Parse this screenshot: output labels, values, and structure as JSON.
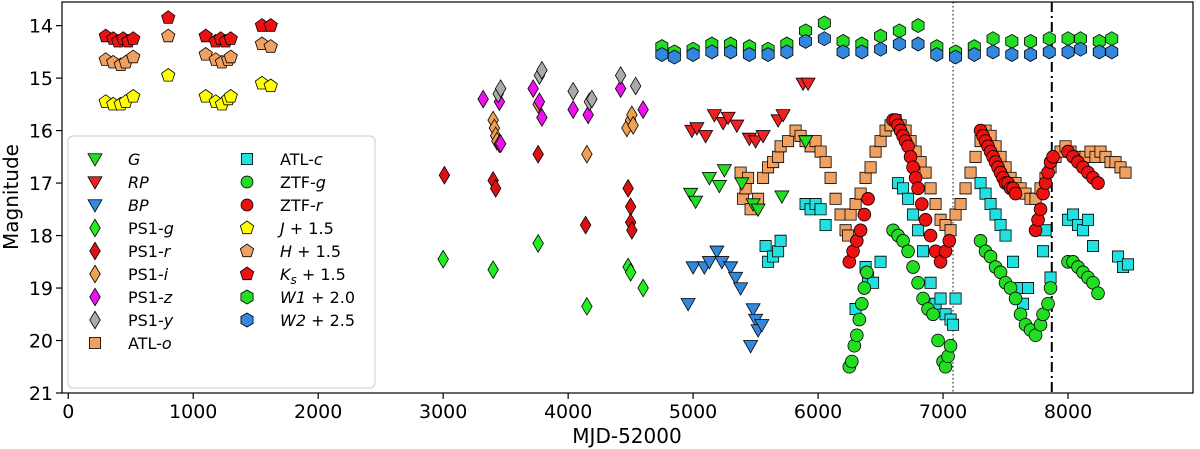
{
  "chart_data": {
    "type": "scatter",
    "title": "",
    "xlabel": "MJD-52000",
    "ylabel": "Magnitude",
    "xlim": [
      -50,
      9000
    ],
    "ylim": [
      21,
      13.55
    ],
    "y_inverted": true,
    "xticks": [
      0,
      1000,
      2000,
      3000,
      4000,
      5000,
      6000,
      7000,
      8000
    ],
    "yticks": [
      14,
      15,
      16,
      17,
      18,
      19,
      20,
      21
    ],
    "vlines": [
      {
        "x": 7080,
        "style": "dotted"
      },
      {
        "x": 7870,
        "style": "dashdot"
      }
    ],
    "legend_position": "left",
    "legend": [
      {
        "label": "G",
        "italic": true,
        "sub": "",
        "suffix": "",
        "series": "G"
      },
      {
        "label": "RP",
        "italic": true,
        "sub": "",
        "suffix": "",
        "series": "RP"
      },
      {
        "label": "BP",
        "italic": true,
        "sub": "",
        "suffix": "",
        "series": "BP"
      },
      {
        "label": "PS1-",
        "italic": false,
        "band": "g",
        "suffix": "",
        "series": "PS1-g"
      },
      {
        "label": "PS1-",
        "italic": false,
        "band": "r",
        "suffix": "",
        "series": "PS1-r"
      },
      {
        "label": "PS1-",
        "italic": false,
        "band": "i",
        "suffix": "",
        "series": "PS1-i"
      },
      {
        "label": "PS1-",
        "italic": false,
        "band": "z",
        "suffix": "",
        "series": "PS1-z"
      },
      {
        "label": "PS1-",
        "italic": false,
        "band": "y",
        "suffix": "",
        "series": "PS1-y"
      },
      {
        "label": "ATL-",
        "italic": false,
        "band": "o",
        "suffix": "",
        "series": "ATL-o"
      },
      {
        "label": "ATL-",
        "italic": false,
        "band": "c",
        "suffix": "",
        "series": "ATL-c"
      },
      {
        "label": "ZTF-",
        "italic": false,
        "band": "g",
        "suffix": "",
        "series": "ZTF-g"
      },
      {
        "label": "ZTF-",
        "italic": false,
        "band": "r",
        "suffix": "",
        "series": "ZTF-r"
      },
      {
        "label": "J",
        "italic": true,
        "sub": "",
        "suffix": " + 1.5",
        "series": "J + 1.5"
      },
      {
        "label": "H",
        "italic": true,
        "sub": "",
        "suffix": " + 1.5",
        "series": "H + 1.5"
      },
      {
        "label": "K",
        "italic": true,
        "sub": "s",
        "suffix": " + 1.5",
        "series": "Ks + 1.5"
      },
      {
        "label": "W1",
        "italic": true,
        "sub": "",
        "suffix": " + 2.0",
        "series": "W1 + 2.0"
      },
      {
        "label": "W2",
        "italic": true,
        "sub": "",
        "suffix": " + 2.5",
        "series": "W2 + 2.5"
      }
    ],
    "series": [
      {
        "name": "G",
        "marker": "triangle-down",
        "color": "#22dd22",
        "x": [
          4980,
          5020,
          5130,
          5210,
          5250,
          5390,
          5480,
          5520,
          5710,
          5900
        ],
        "y": [
          17.2,
          17.35,
          16.9,
          17.05,
          16.75,
          17.0,
          17.4,
          17.5,
          17.25,
          16.2
        ]
      },
      {
        "name": "RP",
        "marker": "triangle-down",
        "color": "#ee2222",
        "x": [
          4990,
          5030,
          5100,
          5170,
          5240,
          5280,
          5350,
          5450,
          5500,
          5560,
          5680,
          5720,
          5880,
          5920
        ],
        "y": [
          16.0,
          15.95,
          16.1,
          15.7,
          15.85,
          15.75,
          15.9,
          16.15,
          16.2,
          16.1,
          15.8,
          15.7,
          15.1,
          15.1
        ]
      },
      {
        "name": "BP",
        "marker": "triangle-down",
        "color": "#3388dd",
        "x": [
          4960,
          5000,
          5090,
          5130,
          5190,
          5230,
          5300,
          5340,
          5380,
          5480,
          5500,
          5520,
          5550,
          5460
        ],
        "y": [
          19.3,
          18.6,
          18.6,
          18.5,
          18.3,
          18.5,
          18.6,
          18.8,
          19.0,
          19.4,
          19.6,
          19.8,
          19.7,
          20.1
        ]
      },
      {
        "name": "PS1-g",
        "marker": "diamond",
        "color": "#22ee22",
        "x": [
          3000,
          3400,
          3760,
          4150,
          4480,
          4500,
          4600
        ],
        "y": [
          18.45,
          18.65,
          18.15,
          19.35,
          18.6,
          18.7,
          19.0
        ]
      },
      {
        "name": "PS1-r",
        "marker": "diamond",
        "color": "#dd1111",
        "x": [
          3010,
          3400,
          3420,
          3760,
          4140,
          4480,
          4500,
          4500,
          4510
        ],
        "y": [
          16.85,
          16.95,
          17.1,
          16.45,
          17.8,
          17.1,
          17.45,
          17.75,
          17.9
        ]
      },
      {
        "name": "PS1-i",
        "marker": "diamond",
        "color": "#f0a050",
        "x": [
          3400,
          3410,
          3420,
          3430,
          3450,
          3760,
          4150,
          4470,
          4500,
          4510,
          4520
        ],
        "y": [
          15.8,
          15.95,
          16.1,
          16.2,
          16.25,
          15.5,
          16.45,
          15.95,
          15.8,
          15.7,
          15.9
        ]
      },
      {
        "name": "PS1-z",
        "marker": "diamond",
        "color": "#ee11ee",
        "x": [
          3320,
          3450,
          3460,
          3720,
          3770,
          4040,
          4160,
          4420,
          4600,
          3790
        ],
        "y": [
          15.4,
          15.45,
          16.25,
          15.2,
          15.45,
          15.6,
          15.7,
          15.2,
          15.6,
          15.75
        ]
      },
      {
        "name": "PS1-y",
        "marker": "diamond",
        "color": "#aaaaaa",
        "x": [
          3440,
          3460,
          3770,
          3790,
          4040,
          4170,
          4190,
          4420,
          4540
        ],
        "y": [
          15.3,
          15.2,
          14.95,
          14.85,
          15.25,
          15.45,
          15.4,
          14.95,
          15.15
        ]
      },
      {
        "name": "ATL-o",
        "marker": "square",
        "color": "#f0a060",
        "x": [
          5380,
          5400,
          5420,
          5440,
          5460,
          5520,
          5560,
          5600,
          5640,
          5680,
          5700,
          5760,
          5820,
          5860,
          5900,
          5940,
          5980,
          6020,
          6060,
          6100,
          6140,
          6180,
          6220,
          6240,
          6260,
          6300,
          6340,
          6380,
          6420,
          6460,
          6500,
          6540,
          6580,
          6620,
          6660,
          6700,
          6740,
          6780,
          6820,
          6860,
          6900,
          6940,
          6980,
          7020,
          7060,
          7100,
          7140,
          7180,
          7220,
          7260,
          7300,
          7340,
          7380,
          7420,
          7460,
          7500,
          7540,
          7580,
          7620,
          7660,
          7700,
          7740,
          7780,
          7820,
          7860,
          7900,
          7940,
          7980,
          8020,
          8060,
          8100,
          8140,
          8180,
          8220,
          8260,
          8300,
          8340,
          8380,
          8420,
          8460
        ],
        "y": [
          16.8,
          17.3,
          17.1,
          16.9,
          17.5,
          17.3,
          16.9,
          16.7,
          16.6,
          16.5,
          16.3,
          16.2,
          16.0,
          16.1,
          16.2,
          16.3,
          16.2,
          16.4,
          16.6,
          16.9,
          17.3,
          17.6,
          17.9,
          18.0,
          17.6,
          17.4,
          17.2,
          16.9,
          16.7,
          16.4,
          16.2,
          16.0,
          15.9,
          15.8,
          15.9,
          16.0,
          16.2,
          16.4,
          16.6,
          16.8,
          17.1,
          17.4,
          17.7,
          17.8,
          17.9,
          17.6,
          17.4,
          17.1,
          16.8,
          16.5,
          16.2,
          16.0,
          16.1,
          16.3,
          16.5,
          16.7,
          16.9,
          17.0,
          17.1,
          17.2,
          17.3,
          17.3,
          17.1,
          16.9,
          16.7,
          16.5,
          16.4,
          16.3,
          16.4,
          16.5,
          16.5,
          16.5,
          16.4,
          16.5,
          16.4,
          16.5,
          16.6,
          16.6,
          16.7,
          16.8
        ]
      },
      {
        "name": "ATL-c",
        "marker": "square",
        "color": "#22e0e0",
        "x": [
          5580,
          5600,
          5640,
          5680,
          5700,
          5900,
          5940,
          5980,
          6020,
          6060,
          6300,
          6380,
          6400,
          6440,
          6500,
          6640,
          6680,
          6720,
          6760,
          6800,
          6840,
          6900,
          6940,
          6980,
          7020,
          7060,
          7080,
          7100,
          7300,
          7340,
          7380,
          7420,
          7460,
          7500,
          7560,
          7620,
          7640,
          7680,
          7800,
          7820,
          7860,
          8000,
          8040,
          8080,
          8120,
          8160,
          8200,
          8400,
          8440,
          8480
        ],
        "y": [
          18.2,
          18.5,
          18.4,
          18.3,
          18.1,
          17.4,
          17.5,
          17.4,
          17.5,
          17.8,
          19.4,
          18.6,
          18.8,
          18.9,
          18.5,
          17.0,
          17.1,
          17.3,
          17.6,
          17.9,
          18.3,
          18.9,
          19.3,
          19.2,
          19.5,
          19.6,
          19.7,
          19.2,
          17.0,
          17.2,
          17.4,
          17.6,
          17.8,
          18.0,
          18.5,
          19.0,
          19.3,
          19.0,
          18.3,
          17.9,
          18.8,
          17.7,
          17.6,
          17.8,
          17.9,
          17.7,
          18.2,
          18.4,
          18.6,
          18.55
        ]
      },
      {
        "name": "ZTF-g",
        "marker": "circle",
        "color": "#22dd22",
        "x": [
          6250,
          6270,
          6290,
          6310,
          6330,
          6350,
          6370,
          6390,
          6600,
          6640,
          6680,
          6720,
          6760,
          6800,
          6840,
          6880,
          6920,
          6960,
          7000,
          7020,
          7040,
          7060,
          7300,
          7340,
          7380,
          7420,
          7460,
          7500,
          7540,
          7580,
          7620,
          7660,
          7700,
          7740,
          7780,
          7800,
          7840,
          7860,
          8000,
          8040,
          8080,
          8120,
          8160,
          8200,
          8240
        ],
        "y": [
          20.5,
          20.4,
          20.1,
          19.9,
          19.6,
          19.3,
          19.0,
          18.7,
          17.9,
          18.0,
          18.1,
          18.3,
          18.6,
          18.9,
          19.2,
          19.4,
          19.5,
          20.0,
          20.4,
          20.5,
          20.3,
          20.1,
          18.1,
          18.3,
          18.4,
          18.6,
          18.7,
          18.9,
          19.0,
          19.2,
          19.5,
          19.7,
          19.8,
          19.9,
          19.7,
          19.5,
          19.3,
          19.0,
          18.5,
          18.5,
          18.6,
          18.7,
          18.8,
          18.9,
          19.1
        ]
      },
      {
        "name": "ZTF-r",
        "marker": "circle",
        "color": "#ee1111",
        "x": [
          6250,
          6280,
          6310,
          6340,
          6370,
          6400,
          6600,
          6620,
          6640,
          6660,
          6680,
          6700,
          6720,
          6740,
          6760,
          6780,
          6800,
          6830,
          6860,
          6900,
          6940,
          6980,
          7020,
          7050,
          7300,
          7320,
          7340,
          7360,
          7380,
          7400,
          7420,
          7440,
          7460,
          7480,
          7500,
          7520,
          7540,
          7560,
          7580,
          7740,
          7760,
          7780,
          7800,
          7820,
          7840,
          7860,
          7880,
          8000,
          8040,
          8080,
          8120,
          8160,
          8200,
          8240
        ],
        "y": [
          18.5,
          18.3,
          18.1,
          17.9,
          17.6,
          17.3,
          15.8,
          15.8,
          15.9,
          16.0,
          16.1,
          16.2,
          16.3,
          16.5,
          16.7,
          16.9,
          17.1,
          17.4,
          17.7,
          18.0,
          18.3,
          18.5,
          18.3,
          18.1,
          16.0,
          16.1,
          16.2,
          16.3,
          16.4,
          16.5,
          16.6,
          16.7,
          16.8,
          16.9,
          17.0,
          17.0,
          17.1,
          17.1,
          17.2,
          17.9,
          17.7,
          17.5,
          17.2,
          17.0,
          16.8,
          16.6,
          16.5,
          16.4,
          16.5,
          16.6,
          16.7,
          16.8,
          16.9,
          17.0
        ]
      },
      {
        "name": "J + 1.5",
        "marker": "pentagon",
        "color": "#ffff00",
        "x": [
          300,
          360,
          420,
          460,
          520,
          800,
          1100,
          1180,
          1230,
          1280,
          1300,
          1550,
          1620
        ],
        "y": [
          15.45,
          15.5,
          15.5,
          15.45,
          15.35,
          14.95,
          15.35,
          15.45,
          15.5,
          15.4,
          15.35,
          15.1,
          15.15
        ]
      },
      {
        "name": "H + 1.5",
        "marker": "pentagon",
        "color": "#f0a060",
        "x": [
          300,
          360,
          420,
          460,
          520,
          800,
          1100,
          1180,
          1230,
          1280,
          1300,
          1550,
          1620
        ],
        "y": [
          14.65,
          14.7,
          14.75,
          14.7,
          14.6,
          14.2,
          14.55,
          14.65,
          14.7,
          14.65,
          14.6,
          14.35,
          14.4
        ]
      },
      {
        "name": "Ks + 1.5",
        "marker": "pentagon",
        "color": "#ee1111",
        "x": [
          300,
          360,
          400,
          440,
          480,
          520,
          800,
          1100,
          1180,
          1220,
          1260,
          1300,
          1550,
          1620
        ],
        "y": [
          14.2,
          14.25,
          14.3,
          14.25,
          14.3,
          14.25,
          13.85,
          14.2,
          14.3,
          14.25,
          14.3,
          14.25,
          14.0,
          14.0
        ]
      },
      {
        "name": "W1 + 2.0",
        "marker": "hexagon",
        "color": "#22dd22",
        "x": [
          4750,
          4850,
          5000,
          5150,
          5300,
          5450,
          5600,
          5750,
          5900,
          6050,
          6200,
          6350,
          6500,
          6650,
          6800,
          6950,
          7100,
          7250,
          7400,
          7550,
          7700,
          7850,
          8000,
          8100,
          8250,
          8350
        ],
        "y": [
          14.4,
          14.5,
          14.45,
          14.35,
          14.35,
          14.4,
          14.45,
          14.35,
          14.1,
          13.95,
          14.3,
          14.35,
          14.2,
          14.1,
          14.0,
          14.4,
          14.5,
          14.4,
          14.25,
          14.3,
          14.3,
          14.25,
          14.25,
          14.25,
          14.3,
          14.25
        ]
      },
      {
        "name": "W2 + 2.5",
        "marker": "hexagon",
        "color": "#3388dd",
        "x": [
          4750,
          4850,
          5000,
          5150,
          5300,
          5450,
          5600,
          5750,
          5900,
          6050,
          6200,
          6350,
          6500,
          6650,
          6800,
          6950,
          7100,
          7250,
          7400,
          7550,
          7700,
          7850,
          8000,
          8100,
          8250,
          8350
        ],
        "y": [
          14.55,
          14.6,
          14.55,
          14.5,
          14.5,
          14.55,
          14.55,
          14.5,
          14.3,
          14.25,
          14.5,
          14.5,
          14.45,
          14.35,
          14.35,
          14.55,
          14.6,
          14.55,
          14.5,
          14.55,
          14.55,
          14.5,
          14.5,
          14.45,
          14.5,
          14.5
        ]
      }
    ]
  }
}
